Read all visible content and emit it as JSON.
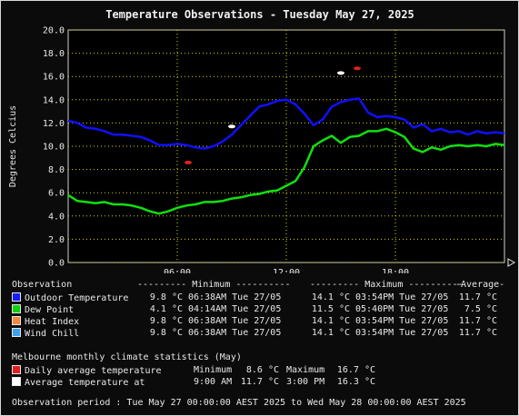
{
  "chart_data": {
    "type": "line",
    "title": "Temperature Observations - Tuesday May 27, 2025",
    "ylabel": "Degrees Celcius",
    "xlabel": "",
    "ylim": [
      0,
      20
    ],
    "xlim": [
      0,
      24
    ],
    "yticks": [
      "0.0",
      "2.0",
      "4.0",
      "6.0",
      "8.0",
      "10.0",
      "12.0",
      "14.0",
      "16.0",
      "18.0",
      "20.0"
    ],
    "xticks": [
      {
        "x": 6,
        "label": "06:00"
      },
      {
        "x": 12,
        "label": "12:00"
      },
      {
        "x": 18,
        "label": "18:00"
      }
    ],
    "grid": true,
    "series": [
      {
        "name": "Outdoor Temperature",
        "color": "#1010ff",
        "x": [
          0,
          0.5,
          1,
          1.5,
          2,
          2.5,
          3,
          3.5,
          4,
          4.5,
          5,
          5.5,
          6,
          6.5,
          7,
          7.5,
          8,
          8.5,
          9,
          9.5,
          10,
          10.5,
          11,
          11.5,
          12,
          12.5,
          13,
          13.5,
          14,
          14.5,
          15,
          15.5,
          16,
          16.5,
          17,
          17.5,
          18,
          18.5,
          19,
          19.5,
          20,
          20.5,
          21,
          21.5,
          22,
          22.5,
          23,
          23.5,
          24
        ],
        "values": [
          12.2,
          12.0,
          11.6,
          11.5,
          11.3,
          11.0,
          11.0,
          10.9,
          10.8,
          10.5,
          10.1,
          10.1,
          10.2,
          10.1,
          9.9,
          9.8,
          10.0,
          10.4,
          11.0,
          11.8,
          12.6,
          13.4,
          13.6,
          13.9,
          14.0,
          13.6,
          12.8,
          11.8,
          12.3,
          13.4,
          13.8,
          14.0,
          14.1,
          12.9,
          12.5,
          12.6,
          12.5,
          12.3,
          11.6,
          11.9,
          11.3,
          11.5,
          11.2,
          11.3,
          11.0,
          11.3,
          11.1,
          11.2,
          11.1
        ]
      },
      {
        "name": "Dew Point",
        "color": "#10e010",
        "x": [
          0,
          0.5,
          1,
          1.5,
          2,
          2.5,
          3,
          3.5,
          4,
          4.5,
          5,
          5.5,
          6,
          6.5,
          7,
          7.5,
          8,
          8.5,
          9,
          9.5,
          10,
          10.5,
          11,
          11.5,
          12,
          12.5,
          13,
          13.5,
          14,
          14.5,
          15,
          15.5,
          16,
          16.5,
          17,
          17.5,
          18,
          18.5,
          19,
          19.5,
          20,
          20.5,
          21,
          21.5,
          22,
          22.5,
          23,
          23.5,
          24
        ],
        "values": [
          5.8,
          5.3,
          5.2,
          5.1,
          5.2,
          5.0,
          5.0,
          4.9,
          4.7,
          4.4,
          4.2,
          4.4,
          4.7,
          4.9,
          5.0,
          5.2,
          5.2,
          5.3,
          5.5,
          5.6,
          5.8,
          5.9,
          6.1,
          6.2,
          6.6,
          7.0,
          8.2,
          10.0,
          10.5,
          10.9,
          10.3,
          10.8,
          10.9,
          11.3,
          11.3,
          11.5,
          11.2,
          10.8,
          9.8,
          9.5,
          9.9,
          9.7,
          10.0,
          10.1,
          10.0,
          10.1,
          10.0,
          10.2,
          10.1
        ]
      }
    ],
    "markers": [
      {
        "name": "Daily average temperature",
        "color": "#e02020",
        "points": [
          {
            "x": 6.6,
            "y": 8.6
          },
          {
            "x": 15.9,
            "y": 16.7
          }
        ]
      },
      {
        "name": "Average temperature at",
        "color": "#ffffff",
        "points": [
          {
            "x": 9.0,
            "y": 11.7
          },
          {
            "x": 15.0,
            "y": 16.3
          }
        ]
      }
    ]
  },
  "table": {
    "header": {
      "observation": "Observation",
      "minimum": "--------- Minimum ----------",
      "maximum": "--------- Maximum ----------",
      "average": "-Average-"
    },
    "rows": [
      {
        "swatch": "#1a1aff",
        "label": "Outdoor Temperature",
        "min_val": "9.8 °C",
        "min_time": "06:38AM Tue 27/05",
        "max_val": "14.1 °C",
        "max_time": "03:54PM Tue 27/05",
        "avg": "11.7 °C"
      },
      {
        "swatch": "#10d010",
        "label": "Dew Point",
        "min_val": "4.1 °C",
        "min_time": "04:14AM Tue 27/05",
        "max_val": "11.5 °C",
        "max_time": "05:40PM Tue 27/05",
        "avg": "7.5 °C"
      },
      {
        "swatch": "#f08a40",
        "label": "Heat Index",
        "min_val": "9.8 °C",
        "min_time": "06:38AM Tue 27/05",
        "max_val": "14.1 °C",
        "max_time": "03:54PM Tue 27/05",
        "avg": "11.7 °C"
      },
      {
        "swatch": "#40a0f0",
        "label": "Wind Chill",
        "min_val": "9.8 °C",
        "min_time": "06:38AM Tue 27/05",
        "max_val": "14.1 °C",
        "max_time": "03:54PM Tue 27/05",
        "avg": "11.7 °C"
      }
    ]
  },
  "climate": {
    "heading": "Melbourne monthly climate statistics (May)",
    "rows": [
      {
        "swatch": "#e02020",
        "label": "Daily average temperature",
        "a_label": "Minimum",
        "a_val": "8.6 °C",
        "b_label": "Maximum",
        "b_val": "16.7 °C"
      },
      {
        "swatch": "#ffffff",
        "label": "Average temperature at",
        "a_label": "9:00 AM",
        "a_val": "11.7 °C",
        "b_label": "3:00 PM",
        "b_val": "16.3 °C"
      }
    ]
  },
  "period": "Observation period : Tue May 27 00:00:00 AEST 2025 to Wed May 28 00:00:00 AEST 2025"
}
